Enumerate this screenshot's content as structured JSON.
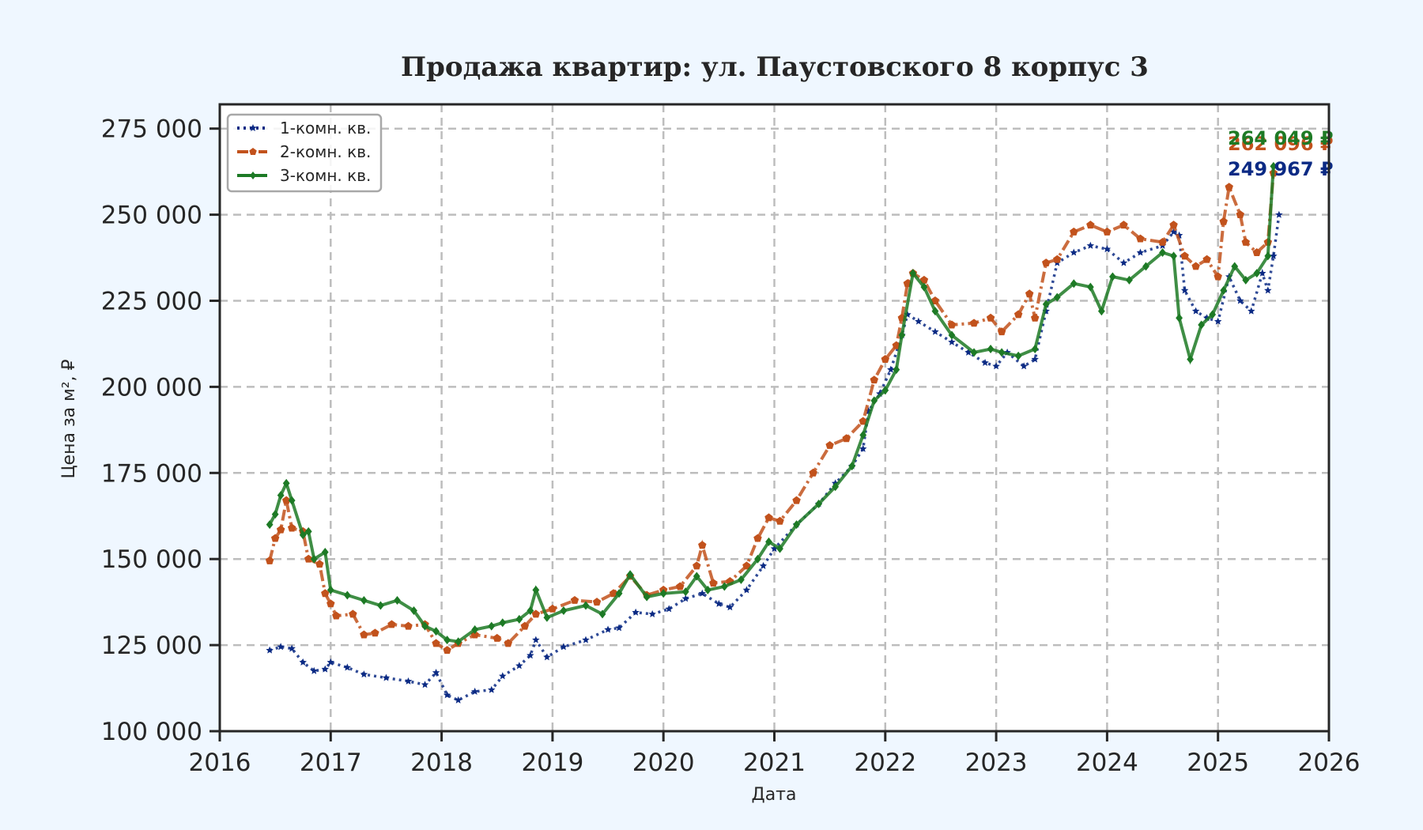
{
  "chart_data": {
    "type": "line",
    "title": "Продажа квартир: ул. Паустовского 8 корпус 3",
    "xlabel": "Дата",
    "ylabel": "Цена за м², ₽",
    "xlim": [
      2016,
      2026
    ],
    "ylim": [
      100000,
      280000
    ],
    "x_ticks": [
      2016,
      2017,
      2018,
      2019,
      2020,
      2021,
      2022,
      2023,
      2024,
      2025,
      2026
    ],
    "y_ticks": [
      100000,
      125000,
      150000,
      175000,
      200000,
      225000,
      250000,
      275000
    ],
    "y_tick_labels": [
      "100 000",
      "125 000",
      "150 000",
      "175 000",
      "200 000",
      "225 000",
      "250 000",
      "275 000"
    ],
    "grid": true,
    "legend_position": "upper left",
    "series": [
      {
        "name": "1-комн. кв.",
        "color": "#0b2a84",
        "style": "dotted",
        "marker": "star",
        "end_label": "249 967 ₽",
        "points": [
          [
            2016.45,
            123500
          ],
          [
            2016.55,
            124500
          ],
          [
            2016.65,
            124000
          ],
          [
            2016.75,
            120000
          ],
          [
            2016.85,
            117500
          ],
          [
            2016.95,
            118000
          ],
          [
            2017.0,
            120000
          ],
          [
            2017.15,
            118500
          ],
          [
            2017.3,
            116500
          ],
          [
            2017.5,
            115500
          ],
          [
            2017.7,
            114500
          ],
          [
            2017.85,
            113500
          ],
          [
            2017.95,
            117000
          ],
          [
            2018.05,
            110500
          ],
          [
            2018.15,
            109000
          ],
          [
            2018.3,
            111500
          ],
          [
            2018.45,
            112000
          ],
          [
            2018.55,
            116000
          ],
          [
            2018.7,
            119000
          ],
          [
            2018.8,
            122000
          ],
          [
            2018.85,
            126500
          ],
          [
            2018.95,
            121500
          ],
          [
            2019.1,
            124500
          ],
          [
            2019.3,
            126500
          ],
          [
            2019.5,
            129500
          ],
          [
            2019.6,
            130000
          ],
          [
            2019.75,
            134500
          ],
          [
            2019.9,
            134000
          ],
          [
            2020.05,
            135500
          ],
          [
            2020.2,
            138500
          ],
          [
            2020.35,
            140000
          ],
          [
            2020.5,
            137000
          ],
          [
            2020.6,
            136000
          ],
          [
            2020.75,
            141000
          ],
          [
            2020.9,
            148000
          ],
          [
            2021.0,
            153000
          ],
          [
            2021.2,
            160000
          ],
          [
            2021.4,
            166000
          ],
          [
            2021.55,
            172000
          ],
          [
            2021.7,
            177000
          ],
          [
            2021.8,
            182000
          ],
          [
            2021.85,
            193000
          ],
          [
            2021.95,
            198000
          ],
          [
            2022.05,
            205000
          ],
          [
            2022.15,
            215000
          ],
          [
            2022.2,
            221000
          ],
          [
            2022.3,
            219000
          ],
          [
            2022.45,
            216000
          ],
          [
            2022.6,
            213000
          ],
          [
            2022.75,
            210000
          ],
          [
            2022.9,
            207000
          ],
          [
            2023.0,
            206000
          ],
          [
            2023.1,
            210000
          ],
          [
            2023.25,
            206000
          ],
          [
            2023.35,
            208000
          ],
          [
            2023.45,
            222000
          ],
          [
            2023.55,
            236000
          ],
          [
            2023.7,
            239000
          ],
          [
            2023.85,
            241000
          ],
          [
            2024.0,
            240000
          ],
          [
            2024.15,
            236000
          ],
          [
            2024.3,
            239000
          ],
          [
            2024.5,
            241000
          ],
          [
            2024.6,
            245000
          ],
          [
            2024.65,
            244000
          ],
          [
            2024.7,
            228000
          ],
          [
            2024.8,
            222000
          ],
          [
            2024.9,
            220000
          ],
          [
            2025.0,
            219000
          ],
          [
            2025.1,
            232000
          ],
          [
            2025.2,
            225000
          ],
          [
            2025.3,
            222000
          ],
          [
            2025.4,
            233000
          ],
          [
            2025.45,
            228000
          ],
          [
            2025.5,
            238000
          ],
          [
            2025.55,
            249967
          ]
        ]
      },
      {
        "name": "2-комн. кв.",
        "color": "#c2521c",
        "style": "dashdot",
        "marker": "pentagon",
        "end_label": "262 096 ₽",
        "points": [
          [
            2016.45,
            149500
          ],
          [
            2016.5,
            156000
          ],
          [
            2016.55,
            158500
          ],
          [
            2016.6,
            167000
          ],
          [
            2016.65,
            159000
          ],
          [
            2016.75,
            158000
          ],
          [
            2016.8,
            150000
          ],
          [
            2016.9,
            148500
          ],
          [
            2016.95,
            140000
          ],
          [
            2017.0,
            137000
          ],
          [
            2017.05,
            133500
          ],
          [
            2017.2,
            134000
          ],
          [
            2017.3,
            128000
          ],
          [
            2017.4,
            128500
          ],
          [
            2017.55,
            131000
          ],
          [
            2017.7,
            130500
          ],
          [
            2017.85,
            131000
          ],
          [
            2017.95,
            125500
          ],
          [
            2018.05,
            123500
          ],
          [
            2018.15,
            125500
          ],
          [
            2018.3,
            128000
          ],
          [
            2018.5,
            127000
          ],
          [
            2018.6,
            125500
          ],
          [
            2018.75,
            130500
          ],
          [
            2018.85,
            134000
          ],
          [
            2019.0,
            135500
          ],
          [
            2019.2,
            138000
          ],
          [
            2019.4,
            137500
          ],
          [
            2019.55,
            140000
          ],
          [
            2019.7,
            145000
          ],
          [
            2019.85,
            139500
          ],
          [
            2020.0,
            141000
          ],
          [
            2020.15,
            142000
          ],
          [
            2020.3,
            148000
          ],
          [
            2020.35,
            154000
          ],
          [
            2020.45,
            143000
          ],
          [
            2020.6,
            143500
          ],
          [
            2020.75,
            148000
          ],
          [
            2020.85,
            156000
          ],
          [
            2020.95,
            162000
          ],
          [
            2021.05,
            161000
          ],
          [
            2021.2,
            167000
          ],
          [
            2021.35,
            175000
          ],
          [
            2021.5,
            183000
          ],
          [
            2021.65,
            185000
          ],
          [
            2021.8,
            190000
          ],
          [
            2021.9,
            202000
          ],
          [
            2022.0,
            208000
          ],
          [
            2022.1,
            212000
          ],
          [
            2022.15,
            220000
          ],
          [
            2022.2,
            230000
          ],
          [
            2022.25,
            233000
          ],
          [
            2022.35,
            231000
          ],
          [
            2022.45,
            225000
          ],
          [
            2022.6,
            218000
          ],
          [
            2022.8,
            218500
          ],
          [
            2022.95,
            220000
          ],
          [
            2023.05,
            216000
          ],
          [
            2023.2,
            221000
          ],
          [
            2023.3,
            227000
          ],
          [
            2023.35,
            220000
          ],
          [
            2023.45,
            236000
          ],
          [
            2023.55,
            237000
          ],
          [
            2023.7,
            245000
          ],
          [
            2023.85,
            247000
          ],
          [
            2024.0,
            245000
          ],
          [
            2024.15,
            247000
          ],
          [
            2024.3,
            243000
          ],
          [
            2024.5,
            242000
          ],
          [
            2024.6,
            247000
          ],
          [
            2024.7,
            238000
          ],
          [
            2024.8,
            235000
          ],
          [
            2024.9,
            237000
          ],
          [
            2025.0,
            232000
          ],
          [
            2025.05,
            248000
          ],
          [
            2025.1,
            258000
          ],
          [
            2025.2,
            250000
          ],
          [
            2025.25,
            242000
          ],
          [
            2025.35,
            239000
          ],
          [
            2025.45,
            242000
          ],
          [
            2025.5,
            262096
          ]
        ]
      },
      {
        "name": "3-комн. кв.",
        "color": "#1d7a25",
        "style": "solid",
        "marker": "diamond",
        "end_label": "264 049 ₽",
        "points": [
          [
            2016.45,
            160000
          ],
          [
            2016.5,
            163000
          ],
          [
            2016.55,
            168500
          ],
          [
            2016.6,
            172000
          ],
          [
            2016.65,
            167000
          ],
          [
            2016.75,
            157000
          ],
          [
            2016.8,
            158000
          ],
          [
            2016.85,
            150000
          ],
          [
            2016.95,
            152000
          ],
          [
            2017.0,
            141000
          ],
          [
            2017.15,
            139500
          ],
          [
            2017.3,
            138000
          ],
          [
            2017.45,
            136500
          ],
          [
            2017.6,
            138000
          ],
          [
            2017.75,
            135000
          ],
          [
            2017.85,
            130500
          ],
          [
            2017.95,
            129000
          ],
          [
            2018.05,
            126500
          ],
          [
            2018.15,
            126000
          ],
          [
            2018.3,
            129500
          ],
          [
            2018.45,
            130500
          ],
          [
            2018.55,
            131500
          ],
          [
            2018.7,
            132500
          ],
          [
            2018.8,
            135000
          ],
          [
            2018.85,
            141000
          ],
          [
            2018.95,
            133000
          ],
          [
            2019.1,
            135000
          ],
          [
            2019.3,
            136500
          ],
          [
            2019.45,
            134000
          ],
          [
            2019.6,
            140000
          ],
          [
            2019.7,
            145500
          ],
          [
            2019.85,
            139000
          ],
          [
            2020.0,
            140000
          ],
          [
            2020.2,
            140500
          ],
          [
            2020.3,
            145000
          ],
          [
            2020.4,
            141000
          ],
          [
            2020.55,
            142000
          ],
          [
            2020.7,
            144000
          ],
          [
            2020.85,
            150000
          ],
          [
            2020.95,
            155000
          ],
          [
            2021.05,
            153000
          ],
          [
            2021.2,
            160000
          ],
          [
            2021.4,
            166000
          ],
          [
            2021.55,
            171000
          ],
          [
            2021.7,
            177000
          ],
          [
            2021.8,
            186000
          ],
          [
            2021.9,
            196000
          ],
          [
            2022.0,
            199000
          ],
          [
            2022.1,
            205000
          ],
          [
            2022.15,
            215000
          ],
          [
            2022.25,
            233000
          ],
          [
            2022.35,
            229000
          ],
          [
            2022.45,
            222000
          ],
          [
            2022.6,
            215000
          ],
          [
            2022.8,
            210000
          ],
          [
            2022.95,
            211000
          ],
          [
            2023.05,
            210000
          ],
          [
            2023.2,
            209000
          ],
          [
            2023.35,
            211000
          ],
          [
            2023.45,
            224000
          ],
          [
            2023.55,
            226000
          ],
          [
            2023.7,
            230000
          ],
          [
            2023.85,
            229000
          ],
          [
            2023.95,
            222000
          ],
          [
            2024.05,
            232000
          ],
          [
            2024.2,
            231000
          ],
          [
            2024.35,
            235000
          ],
          [
            2024.5,
            239000
          ],
          [
            2024.6,
            238000
          ],
          [
            2024.65,
            220000
          ],
          [
            2024.75,
            208000
          ],
          [
            2024.85,
            218000
          ],
          [
            2024.95,
            221000
          ],
          [
            2025.05,
            228000
          ],
          [
            2025.15,
            235000
          ],
          [
            2025.25,
            231000
          ],
          [
            2025.35,
            233000
          ],
          [
            2025.45,
            238000
          ],
          [
            2025.5,
            264049
          ]
        ]
      }
    ]
  }
}
